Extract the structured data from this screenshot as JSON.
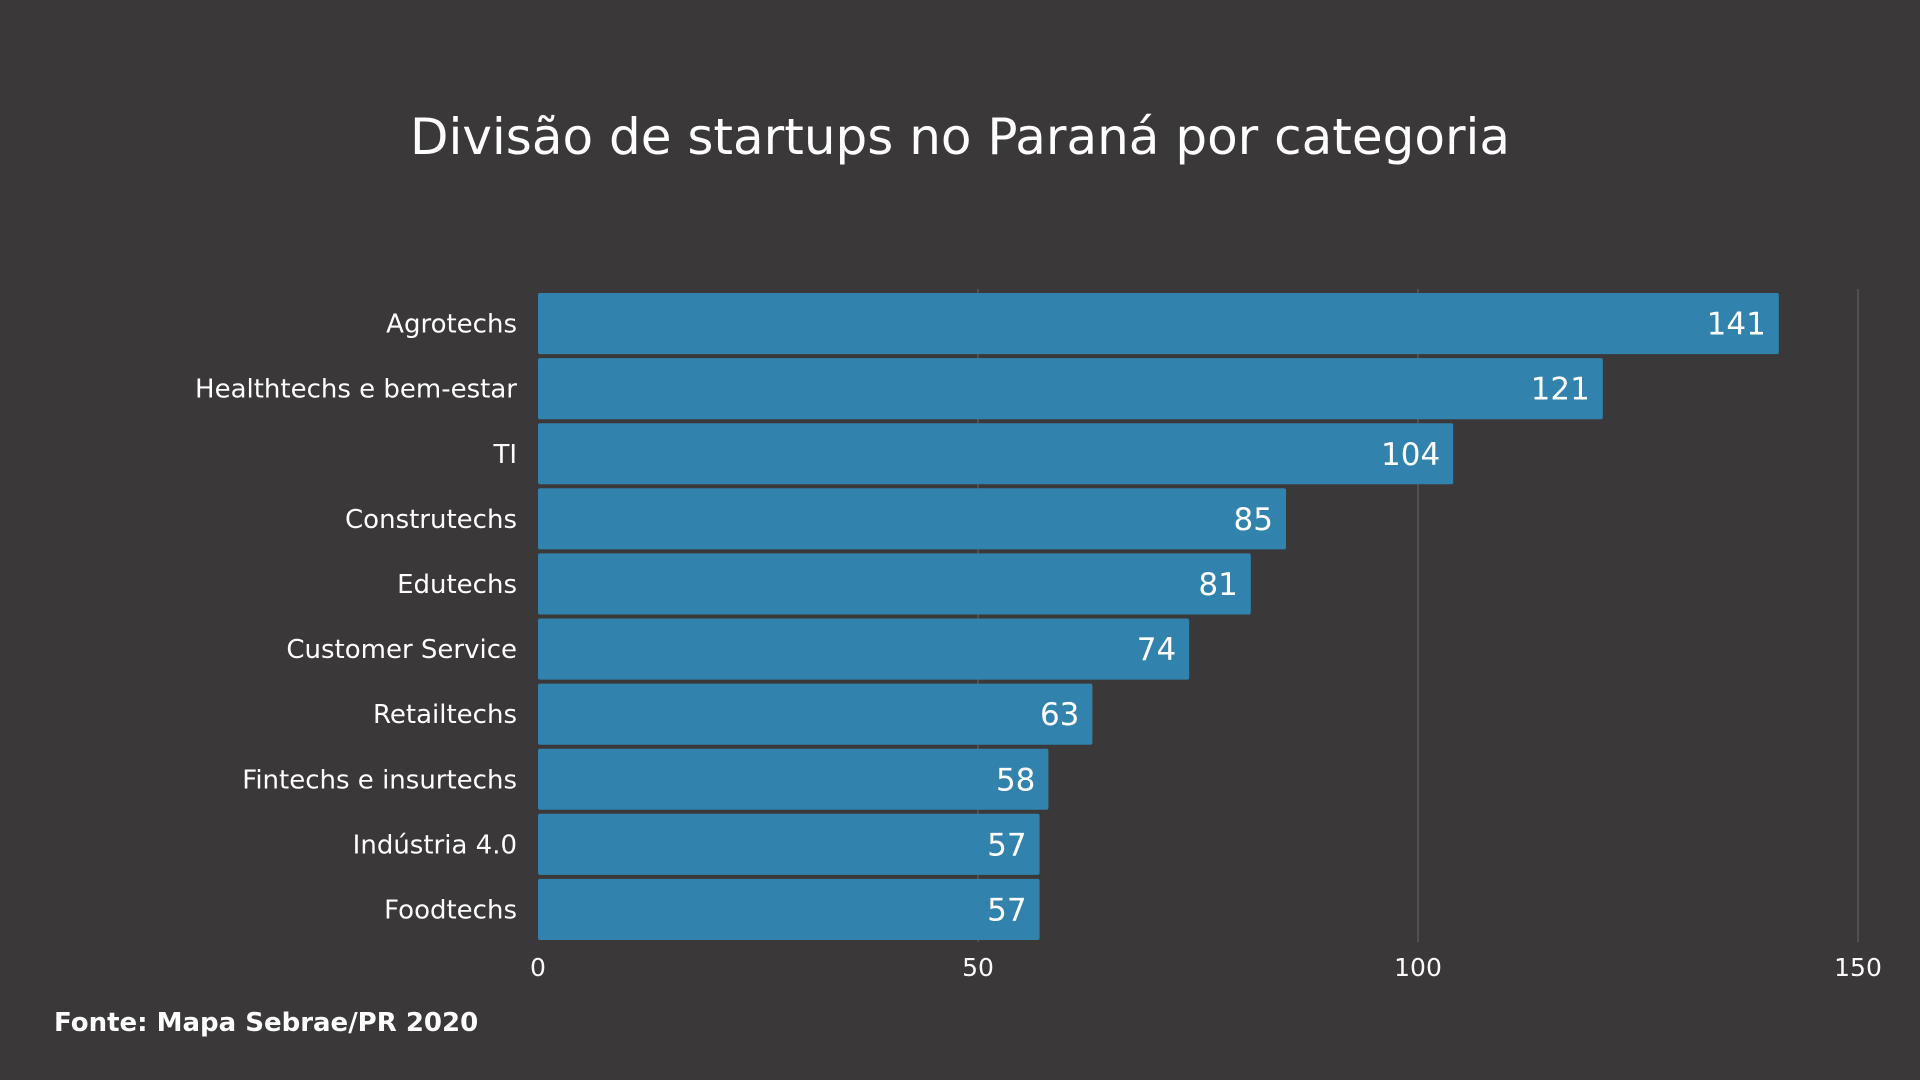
{
  "chart_data": {
    "type": "bar",
    "orientation": "horizontal",
    "title": "Divisão de startups no Paraná por categoria",
    "categories": [
      "Agrotechs",
      "Healthtechs e bem-estar",
      "TI",
      "Construtechs",
      "Edutechs",
      "Customer Service",
      "Retailtechs",
      "Fintechs e insurtechs",
      "Indústria 4.0",
      "Foodtechs"
    ],
    "values": [
      141,
      121,
      104,
      85,
      81,
      74,
      63,
      58,
      57,
      57
    ],
    "xlim": [
      0,
      150
    ],
    "xticks": [
      0,
      50,
      100,
      150
    ],
    "grid": true,
    "legend": "none",
    "data_labels": true,
    "colors": {
      "bar": "#3183ad",
      "background": "#3b3839",
      "grid": "#5a5758",
      "text": "#ffffff"
    }
  },
  "footer": {
    "source": "Fonte: Mapa Sebrae/PR 2020"
  }
}
